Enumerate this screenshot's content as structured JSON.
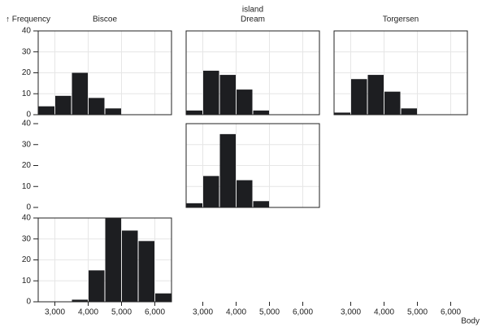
{
  "chart_data": {
    "type": "histogram",
    "title": "island",
    "y_label": "↑ Frequency",
    "x_label": "Body",
    "columns": [
      "Biscoe",
      "Dream",
      "Torgersen"
    ],
    "bins": [
      2500,
      3000,
      3500,
      4000,
      4500,
      5000,
      5500,
      6000,
      6500
    ],
    "facets": [
      [
        [
          4,
          9,
          20,
          8,
          3,
          0,
          0,
          0
        ],
        [
          2,
          21,
          19,
          12,
          2,
          0,
          0,
          0
        ],
        [
          1,
          17,
          19,
          11,
          3,
          0,
          0,
          0
        ]
      ],
      [
        null,
        [
          2,
          15,
          35,
          13,
          3,
          0,
          0,
          0
        ],
        null
      ],
      [
        [
          0,
          0,
          1,
          15,
          40,
          34,
          29,
          4
        ],
        null,
        null
      ]
    ],
    "color": "#1d1e21",
    "xlim": [
      2500,
      6500
    ],
    "xticks": [
      {
        "value": 3000,
        "label": "3,000"
      },
      {
        "value": 4000,
        "label": "4,000"
      },
      {
        "value": 5000,
        "label": "5,000"
      },
      {
        "value": 6000,
        "label": "6,000"
      }
    ],
    "ylim": [
      0,
      40
    ],
    "yticks": [
      0,
      10,
      20,
      30,
      40
    ],
    "grid": true
  }
}
